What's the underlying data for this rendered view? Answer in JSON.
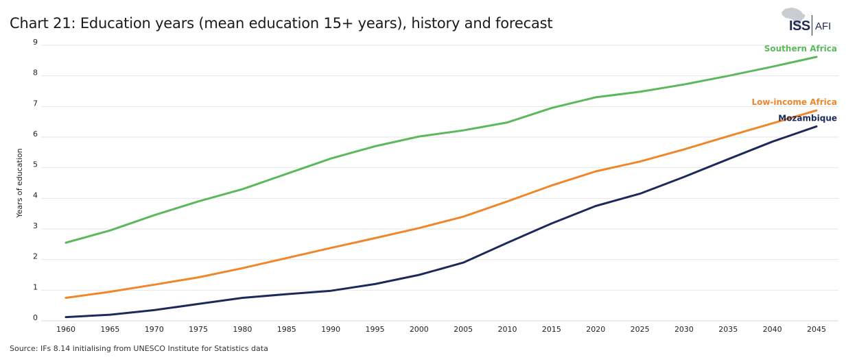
{
  "header": {
    "title": "Chart 21: Education years (mean education 15+ years), history and forecast"
  },
  "logo": {
    "iss": "ISS",
    "afi": "AFI"
  },
  "footer": {
    "source": "Source: IFs 8.14 initialising from UNESCO Institute for Statistics data"
  },
  "chart_data": {
    "type": "line",
    "title": "Chart 21: Education years (mean education 15+ years), history and forecast",
    "xlabel": "",
    "ylabel": "Years of education",
    "ylim": [
      0,
      9
    ],
    "yticks": [
      "0",
      "1",
      "2",
      "3",
      "4",
      "5",
      "6",
      "7",
      "8",
      "9"
    ],
    "x": [
      "1960",
      "1965",
      "1970",
      "1975",
      "1980",
      "1985",
      "1990",
      "1995",
      "2000",
      "2005",
      "2010",
      "2015",
      "2020",
      "2025",
      "2030",
      "2035",
      "2040",
      "2045"
    ],
    "grid": true,
    "series": [
      {
        "name": "Southern Africa",
        "color": "#5cb85c",
        "values": [
          2.55,
          2.95,
          3.45,
          3.9,
          4.3,
          4.8,
          5.3,
          5.7,
          6.02,
          6.22,
          6.48,
          6.95,
          7.3,
          7.48,
          7.72,
          8.0,
          8.3,
          8.62
        ]
      },
      {
        "name": "Low-income Africa",
        "color": "#f0862a",
        "values": [
          0.75,
          0.95,
          1.18,
          1.42,
          1.72,
          2.05,
          2.38,
          2.7,
          3.03,
          3.4,
          3.9,
          4.42,
          4.88,
          5.2,
          5.6,
          6.03,
          6.45,
          6.87
        ]
      },
      {
        "name": "Mozambique",
        "color": "#1b2a5a",
        "values": [
          0.12,
          0.2,
          0.35,
          0.55,
          0.75,
          0.87,
          0.98,
          1.2,
          1.5,
          1.9,
          2.55,
          3.18,
          3.75,
          4.15,
          4.7,
          5.28,
          5.85,
          6.35
        ]
      }
    ]
  }
}
